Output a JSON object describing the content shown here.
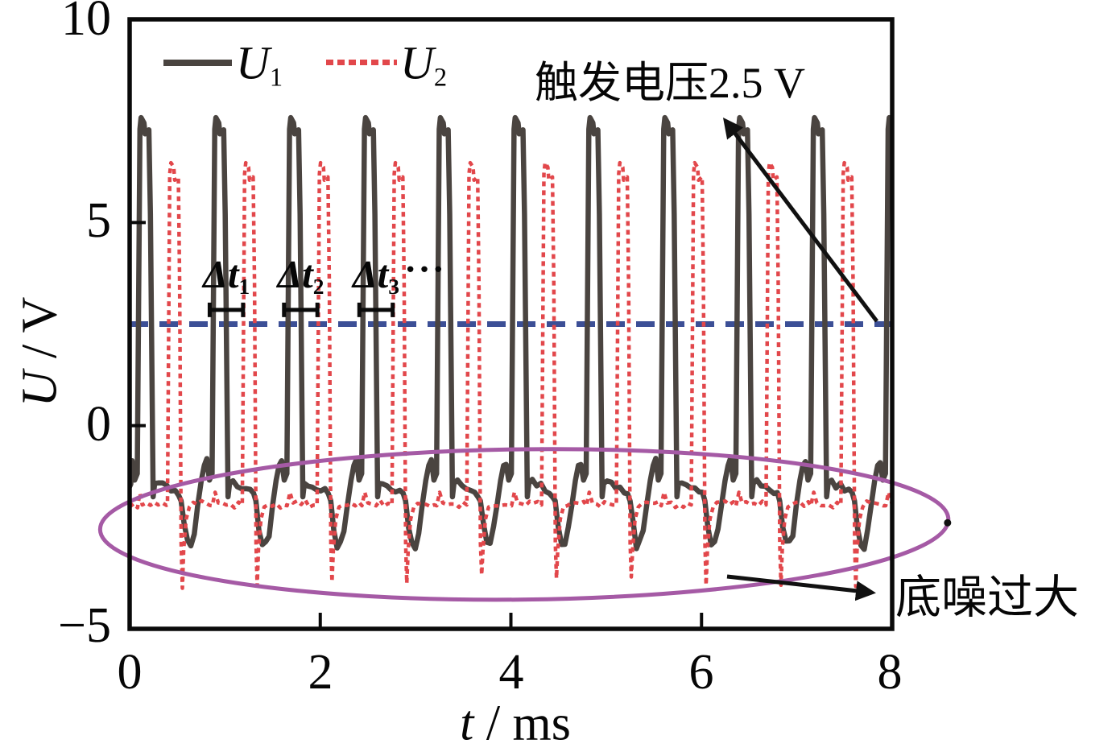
{
  "chart_data": {
    "type": "line",
    "title": "",
    "xlabel_parts": [
      "t",
      " / ms"
    ],
    "ylabel_parts": [
      "U",
      " / V"
    ],
    "xlim": [
      0,
      8
    ],
    "ylim": [
      -5,
      10
    ],
    "x_tick_values": [
      0,
      2,
      4,
      6,
      8
    ],
    "x_tick_labels": [
      "0",
      "2",
      "4",
      "6",
      "8"
    ],
    "y_tick_values": [
      10,
      5,
      0,
      -5
    ],
    "y_tick_labels": [
      "10",
      "5",
      "0",
      "−5"
    ],
    "grid": false,
    "legend_position": "top-left-inside",
    "pulse_period_ms": 0.785,
    "series": [
      {
        "name": "U1",
        "label_main": "U",
        "label_sub": "1",
        "color": "#4a4440",
        "line_style": "solid",
        "pulse_rise_times_ms": [
          0.1,
          0.885,
          1.67,
          2.455,
          3.24,
          4.025,
          4.81,
          5.595,
          6.38,
          7.165,
          7.95
        ],
        "pulse_peak_v": 7.58,
        "pulse_top_v": 7.25,
        "pulse_width_ms": 0.12,
        "baseline_v": -1.45,
        "pre_pulse_bump_v": -0.88,
        "post_red_dip_v": -2.95
      },
      {
        "name": "U2",
        "label_main": "U",
        "label_sub": "2",
        "color": "#e2474b",
        "line_style": "dashed",
        "pulse_rise_times_ms": [
          0.415,
          1.2,
          1.985,
          2.77,
          3.555,
          4.34,
          5.125,
          5.91,
          6.695,
          7.48
        ],
        "pulse_peak_v": 6.47,
        "pulse_top_v": 6.1,
        "pulse_width_ms": 0.11,
        "baseline_v": -1.95,
        "post_pulse_spike_v": -4.0
      }
    ],
    "trigger_line": {
      "value_v": 2.5,
      "color": "#3c4f96",
      "label": "触发电压2.5 V"
    },
    "noise_ellipse": {
      "color": "#a55aa5",
      "label": "底噪过大",
      "center_ms": 4.14,
      "center_v": -2.43,
      "rx_ms": 4.45,
      "ry_v": 1.85
    },
    "delta_t_markers": {
      "level_v": 2.85,
      "ellipsis": "···",
      "items": [
        {
          "main": "Δt",
          "sub": "1",
          "from_ms": 0.84,
          "to_ms": 1.19
        },
        {
          "main": "Δt",
          "sub": "2",
          "from_ms": 1.62,
          "to_ms": 1.97
        },
        {
          "main": "Δt",
          "sub": "3",
          "from_ms": 2.41,
          "to_ms": 2.76
        }
      ]
    }
  }
}
